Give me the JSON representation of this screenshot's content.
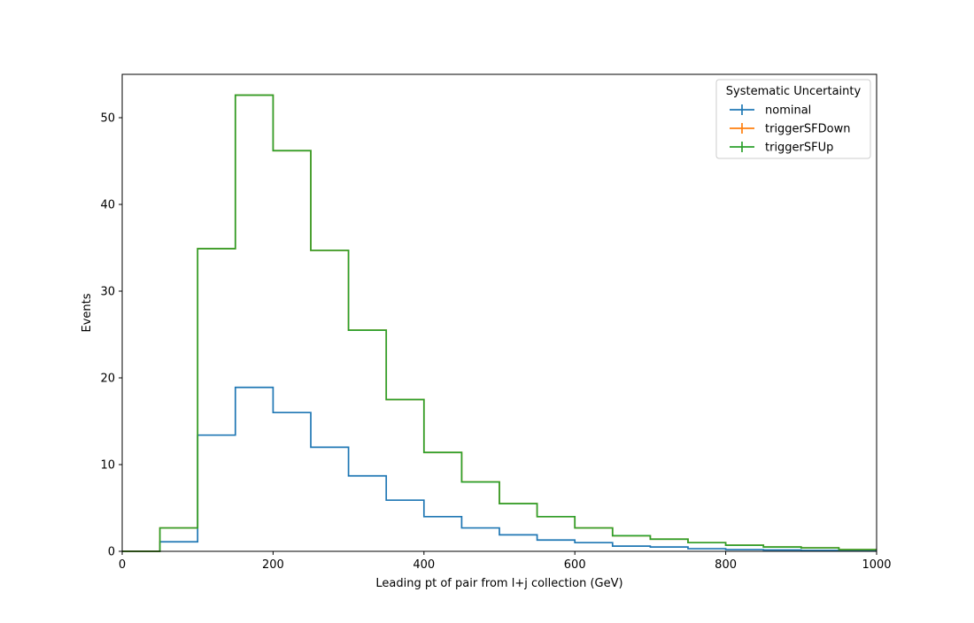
{
  "chart_data": {
    "type": "histogram-step",
    "title": "",
    "xlabel": "Leading pt of pair from l+j collection (GeV)",
    "ylabel": "Events",
    "xlim": [
      0,
      1000
    ],
    "ylim": [
      0,
      55
    ],
    "xticks": [
      0,
      200,
      400,
      600,
      800,
      1000
    ],
    "yticks": [
      0,
      10,
      20,
      30,
      40,
      50
    ],
    "bin_edges": [
      0,
      50,
      100,
      150,
      200,
      250,
      300,
      350,
      400,
      450,
      500,
      550,
      600,
      650,
      700,
      750,
      800,
      850,
      900,
      950,
      1000
    ],
    "legend": {
      "title": "Systematic Uncertainty",
      "placement": "top-right"
    },
    "series": [
      {
        "name": "nominal",
        "color": "#1f77b4",
        "values": [
          0,
          1.1,
          13.4,
          18.9,
          16.0,
          12.0,
          8.7,
          5.9,
          4.0,
          2.7,
          1.9,
          1.3,
          1.0,
          0.6,
          0.5,
          0.3,
          0.2,
          0.15,
          0.1,
          0.05
        ]
      },
      {
        "name": "triggerSFDown",
        "color": "#ff7f0e",
        "values": [
          0,
          2.7,
          34.9,
          52.6,
          46.2,
          34.7,
          25.5,
          17.5,
          11.4,
          8.0,
          5.5,
          4.0,
          2.7,
          1.8,
          1.4,
          1.0,
          0.7,
          0.5,
          0.4,
          0.2
        ]
      },
      {
        "name": "triggerSFUp",
        "color": "#2ca02c",
        "values": [
          0,
          2.7,
          34.9,
          52.6,
          46.2,
          34.7,
          25.5,
          17.5,
          11.4,
          8.0,
          5.5,
          4.0,
          2.7,
          1.8,
          1.4,
          1.0,
          0.7,
          0.5,
          0.4,
          0.2
        ]
      }
    ]
  }
}
